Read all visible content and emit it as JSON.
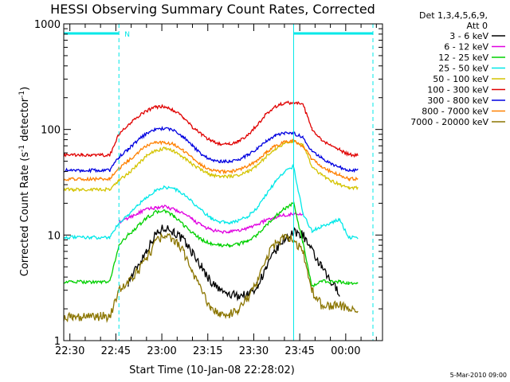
{
  "chart_data": {
    "type": "line",
    "title": "HESSI Observing Summary Count Rates, Corrected",
    "xlabel": "Start Time (10-Jan-08 22:28:02)",
    "ylabel": "Corrected Count Rate (s-1 detector-1)",
    "ylabel_parts": {
      "main": "Corrected Count Rate (s",
      "exp1": "-1",
      "mid": " detector",
      "exp2": "-1",
      "end": ")"
    },
    "y_scale": "log",
    "ylim": [
      1,
      1000
    ],
    "y_ticks": [
      {
        "value": 1,
        "label": "1"
      },
      {
        "value": 10,
        "label": "10"
      },
      {
        "value": 100,
        "label": "100"
      },
      {
        "value": 1000,
        "label": "1000"
      }
    ],
    "xlim": [
      "22:28",
      "00:12"
    ],
    "x_ticks": [
      "22:30",
      "22:45",
      "23:00",
      "23:15",
      "23:30",
      "23:45",
      "00:00"
    ],
    "x": [
      "22:28",
      "22:31",
      "22:34",
      "22:37",
      "22:40",
      "22:43",
      "22:46",
      "22:49",
      "22:52",
      "22:55",
      "22:58",
      "23:01",
      "23:04",
      "23:07",
      "23:10",
      "23:13",
      "23:16",
      "23:19",
      "23:22",
      "23:25",
      "23:28",
      "23:31",
      "23:34",
      "23:37",
      "23:40",
      "23:43",
      "23:46",
      "23:49",
      "23:52",
      "23:55",
      "23:58",
      "00:01",
      "00:04",
      "00:07"
    ],
    "series": [
      {
        "name": "3 - 6 keV",
        "color": "#000000",
        "values": [
          null,
          null,
          null,
          null,
          null,
          null,
          null,
          3.6,
          5,
          7.2,
          10.2,
          12,
          10.7,
          9,
          6.8,
          5,
          3.6,
          3,
          2.7,
          2.7,
          2.7,
          3.3,
          4.8,
          7,
          9.2,
          10.6,
          10.2,
          7,
          5,
          3.6,
          2.9,
          null,
          null,
          null
        ]
      },
      {
        "name": "6 - 12 keV",
        "color": "#e000e0",
        "values": [
          null,
          null,
          null,
          null,
          null,
          null,
          13,
          14.5,
          16,
          17.5,
          18.2,
          18.5,
          17.5,
          16,
          14,
          12.3,
          11.2,
          10.7,
          10.7,
          11,
          11.6,
          12.6,
          13.8,
          14.8,
          15.5,
          15.8,
          16,
          null,
          null,
          null,
          null,
          null,
          null,
          null
        ]
      },
      {
        "name": "12 - 25 keV",
        "color": "#00d000",
        "values": [
          3.6,
          3.6,
          3.6,
          3.6,
          3.6,
          3.6,
          8,
          10,
          12,
          14.5,
          16.5,
          17,
          15,
          12.5,
          10.5,
          9,
          8.3,
          8,
          8,
          8.2,
          8.8,
          10,
          12.3,
          15,
          17.8,
          20,
          8.5,
          3.2,
          3.7,
          3.6,
          3.6,
          3.5,
          3.5,
          null
        ]
      },
      {
        "name": "25 - 50 keV",
        "color": "#00e8e8",
        "values": [
          9.5,
          9.5,
          9.5,
          9.5,
          9.5,
          9.5,
          13,
          15.5,
          19,
          22.5,
          26.5,
          28.5,
          27.5,
          24.5,
          20.5,
          17,
          14.5,
          13.3,
          13.2,
          13.7,
          15,
          18,
          24,
          32,
          40,
          45,
          16,
          11,
          12,
          13,
          14,
          9.5,
          9.5,
          null
        ]
      },
      {
        "name": "50 - 100 keV",
        "color": "#d4c400",
        "values": [
          27,
          27,
          27,
          27,
          27,
          27,
          33,
          38,
          46,
          56,
          63,
          66,
          62,
          55,
          47,
          41,
          37,
          36,
          36,
          37,
          40,
          45,
          55,
          65,
          73,
          78,
          72,
          45,
          37,
          33,
          30,
          28,
          28,
          null
        ]
      },
      {
        "name": "100 - 300 keV",
        "color": "#e00000",
        "values": [
          57,
          57,
          57,
          57,
          57,
          57,
          90,
          110,
          130,
          150,
          163,
          165,
          152,
          130,
          105,
          90,
          78,
          73,
          73,
          77,
          88,
          110,
          140,
          165,
          178,
          180,
          175,
          100,
          80,
          70,
          64,
          58,
          57,
          null
        ]
      },
      {
        "name": "300 - 800 keV",
        "color": "#0000e0",
        "values": [
          41,
          41,
          41,
          41,
          41,
          41,
          55,
          65,
          78,
          92,
          100,
          103,
          98,
          85,
          70,
          58,
          52,
          50,
          50,
          52,
          57,
          65,
          77,
          87,
          92,
          92,
          84,
          62,
          54,
          48,
          44,
          41,
          41,
          null
        ]
      },
      {
        "name": "800 - 7000 keV",
        "color": "#ff8000",
        "values": [
          34,
          34,
          34,
          34,
          34,
          34,
          43,
          50,
          60,
          70,
          75,
          76,
          72,
          63,
          54,
          46,
          42,
          40,
          40,
          41,
          45,
          51,
          60,
          70,
          76,
          78,
          70,
          52,
          45,
          40,
          37,
          34,
          34,
          null
        ]
      },
      {
        "name": "7000 - 20000 keV",
        "color": "#8b7500",
        "values": [
          1.7,
          1.7,
          1.7,
          1.7,
          1.7,
          1.7,
          3,
          3.5,
          4.5,
          6,
          8.5,
          10,
          9,
          7,
          4.5,
          3,
          2,
          1.8,
          1.8,
          2,
          2.5,
          3.5,
          6,
          8.5,
          9.5,
          9,
          7,
          3,
          2.2,
          2.1,
          2.2,
          2,
          2,
          null
        ]
      }
    ],
    "legend_header": [
      "Det 1,3,4,5,6,9,",
      "Att 0"
    ],
    "legend_position": "right",
    "annotations": {
      "flag_label": "N",
      "flag_color": "#00e8e8"
    },
    "timestamp": "5-Mar-2010 09:00"
  }
}
